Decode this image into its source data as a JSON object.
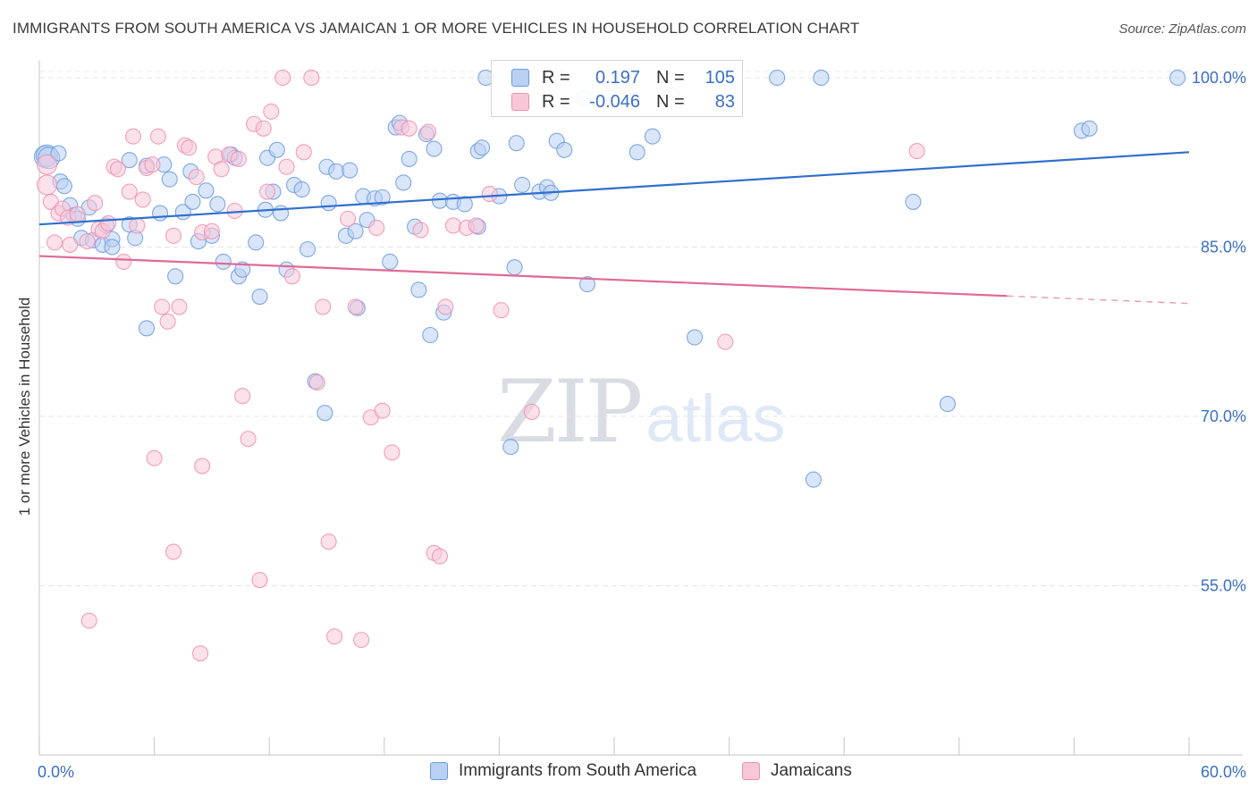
{
  "title": "IMMIGRANTS FROM SOUTH AMERICA VS JAMAICAN 1 OR MORE VEHICLES IN HOUSEHOLD CORRELATION CHART",
  "source": "Source: ZipAtlas.com",
  "watermark": {
    "zip": "ZIP",
    "atlas": "atlas"
  },
  "legend_top": {
    "rows": [
      {
        "r_label": "R =",
        "r_value": "0.197",
        "n_label": "N =",
        "n_value": "105",
        "color": "#6a9be0",
        "fill": "#b9d0f2"
      },
      {
        "r_label": "R =",
        "r_value": "-0.046",
        "n_label": "N =",
        "n_value": "83",
        "color": "#ee8fb0",
        "fill": "#f8c8d8"
      }
    ]
  },
  "legend_bottom": [
    {
      "label": "Immigrants from South America",
      "color": "#6a9be0",
      "fill": "#b9d0f2"
    },
    {
      "label": "Jamaicans",
      "color": "#ee8fb0",
      "fill": "#f8c8d8"
    }
  ],
  "chart_data": {
    "type": "scatter",
    "title": "IMMIGRANTS FROM SOUTH AMERICA VS JAMAICAN 1 OR MORE VEHICLES IN HOUSEHOLD CORRELATION CHART",
    "xlabel": "",
    "ylabel": "1 or more Vehicles in Household",
    "xlim": [
      0,
      60
    ],
    "ylim": [
      40,
      101.5
    ],
    "x_tick_labels": [
      {
        "value": 0,
        "label": "0.0%"
      },
      {
        "value": 60,
        "label": "60.0%"
      }
    ],
    "y_tick_labels": [
      {
        "value": 100,
        "label": "100.0%"
      },
      {
        "value": 85,
        "label": "85.0%"
      },
      {
        "value": 70,
        "label": "70.0%"
      },
      {
        "value": 55,
        "label": "55.0%"
      }
    ],
    "grid": true,
    "legend_position": "top-center",
    "series": [
      {
        "name": "Immigrants from South America",
        "color": "#6a9be0",
        "fill": "#b9d0f2",
        "trend": {
          "x": [
            0,
            60
          ],
          "y": [
            87.0,
            93.4
          ],
          "dashed_from": null
        },
        "points": [
          [
            0.3,
            93.0
          ],
          [
            0.4,
            93.1
          ],
          [
            0.5,
            92.9
          ],
          [
            1.0,
            93.3
          ],
          [
            1.1,
            90.8
          ],
          [
            1.3,
            90.4
          ],
          [
            1.6,
            88.7
          ],
          [
            1.8,
            87.8
          ],
          [
            2.2,
            85.8
          ],
          [
            2.6,
            88.5
          ],
          [
            2.8,
            85.6
          ],
          [
            3.3,
            85.2
          ],
          [
            3.5,
            86.9
          ],
          [
            3.8,
            85.7
          ],
          [
            4.7,
            87.0
          ],
          [
            5.0,
            85.8
          ],
          [
            4.7,
            92.7
          ],
          [
            5.6,
            92.2
          ],
          [
            6.5,
            92.3
          ],
          [
            6.3,
            88.0
          ],
          [
            7.5,
            88.1
          ],
          [
            8.0,
            89.0
          ],
          [
            8.7,
            90.0
          ],
          [
            7.9,
            91.7
          ],
          [
            9.3,
            88.8
          ],
          [
            10.0,
            93.2
          ],
          [
            10.2,
            92.9
          ],
          [
            8.3,
            85.5
          ],
          [
            9.0,
            86.0
          ],
          [
            9.6,
            83.7
          ],
          [
            10.4,
            82.4
          ],
          [
            10.6,
            83.0
          ],
          [
            11.3,
            85.4
          ],
          [
            11.5,
            80.6
          ],
          [
            11.9,
            92.9
          ],
          [
            12.2,
            89.9
          ],
          [
            12.4,
            93.6
          ],
          [
            12.6,
            88.0
          ],
          [
            12.9,
            83.0
          ],
          [
            13.3,
            90.5
          ],
          [
            13.7,
            90.1
          ],
          [
            14.0,
            84.8
          ],
          [
            14.4,
            73.1
          ],
          [
            14.9,
            70.3
          ],
          [
            15.0,
            92.1
          ],
          [
            15.5,
            91.7
          ],
          [
            15.1,
            88.9
          ],
          [
            16.0,
            86.0
          ],
          [
            16.2,
            91.8
          ],
          [
            16.5,
            86.4
          ],
          [
            16.6,
            79.6
          ],
          [
            16.9,
            89.5
          ],
          [
            17.5,
            89.3
          ],
          [
            17.9,
            89.4
          ],
          [
            18.3,
            83.7
          ],
          [
            18.6,
            95.6
          ],
          [
            18.8,
            96.0
          ],
          [
            19.0,
            90.7
          ],
          [
            19.3,
            92.8
          ],
          [
            19.6,
            86.8
          ],
          [
            19.8,
            81.2
          ],
          [
            20.2,
            95.0
          ],
          [
            20.4,
            77.2
          ],
          [
            20.6,
            93.7
          ],
          [
            20.9,
            89.1
          ],
          [
            21.1,
            79.2
          ],
          [
            21.6,
            89.0
          ],
          [
            22.2,
            88.8
          ],
          [
            22.9,
            93.5
          ],
          [
            23.1,
            93.8
          ],
          [
            23.3,
            100.0
          ],
          [
            22.9,
            86.8
          ],
          [
            24.0,
            89.5
          ],
          [
            24.6,
            67.3
          ],
          [
            24.8,
            83.2
          ],
          [
            24.9,
            94.2
          ],
          [
            25.2,
            90.5
          ],
          [
            26.1,
            89.9
          ],
          [
            26.5,
            90.3
          ],
          [
            26.7,
            89.8
          ],
          [
            27.0,
            94.4
          ],
          [
            27.4,
            93.6
          ],
          [
            28.6,
            81.7
          ],
          [
            28.4,
            98.2
          ],
          [
            29.8,
            99.6
          ],
          [
            31.2,
            93.4
          ],
          [
            32.0,
            94.8
          ],
          [
            33.0,
            98.5
          ],
          [
            34.2,
            77.0
          ],
          [
            35.6,
            100.0
          ],
          [
            38.5,
            100.0
          ],
          [
            40.4,
            64.4
          ],
          [
            40.8,
            100.0
          ],
          [
            45.6,
            89.0
          ],
          [
            47.4,
            71.1
          ],
          [
            54.4,
            95.3
          ],
          [
            54.8,
            95.5
          ],
          [
            59.4,
            100.0
          ],
          [
            7.1,
            82.4
          ],
          [
            5.6,
            77.8
          ],
          [
            3.8,
            85.0
          ],
          [
            2.0,
            87.5
          ],
          [
            6.8,
            91.0
          ],
          [
            11.8,
            88.3
          ],
          [
            17.1,
            87.4
          ]
        ]
      },
      {
        "name": "Jamaicans",
        "color": "#ee8fb0",
        "fill": "#f8c8d8",
        "trend": {
          "x": [
            0,
            60
          ],
          "y": [
            84.2,
            80.0
          ],
          "dashed_from": 50.5
        },
        "points": [
          [
            0.4,
            92.3
          ],
          [
            0.4,
            90.5
          ],
          [
            0.6,
            89.0
          ],
          [
            0.8,
            85.4
          ],
          [
            1.0,
            88.0
          ],
          [
            1.2,
            88.4
          ],
          [
            1.5,
            87.6
          ],
          [
            1.6,
            85.2
          ],
          [
            2.0,
            87.9
          ],
          [
            2.5,
            85.5
          ],
          [
            2.9,
            88.9
          ],
          [
            3.1,
            86.6
          ],
          [
            3.3,
            86.4
          ],
          [
            3.6,
            87.1
          ],
          [
            3.9,
            92.1
          ],
          [
            4.1,
            91.9
          ],
          [
            4.4,
            83.7
          ],
          [
            4.7,
            89.9
          ],
          [
            4.9,
            94.8
          ],
          [
            5.1,
            86.9
          ],
          [
            5.4,
            89.2
          ],
          [
            5.6,
            92.0
          ],
          [
            5.9,
            92.3
          ],
          [
            6.2,
            94.8
          ],
          [
            6.4,
            79.7
          ],
          [
            6.7,
            78.4
          ],
          [
            7.0,
            86.0
          ],
          [
            7.3,
            79.7
          ],
          [
            7.6,
            94.0
          ],
          [
            7.8,
            93.8
          ],
          [
            8.2,
            91.2
          ],
          [
            8.5,
            86.3
          ],
          [
            9.0,
            86.4
          ],
          [
            9.2,
            93.0
          ],
          [
            9.5,
            91.9
          ],
          [
            9.9,
            93.2
          ],
          [
            10.2,
            88.2
          ],
          [
            10.4,
            92.8
          ],
          [
            10.6,
            71.8
          ],
          [
            10.9,
            68.0
          ],
          [
            11.2,
            95.9
          ],
          [
            11.7,
            95.5
          ],
          [
            11.9,
            89.9
          ],
          [
            12.1,
            97.0
          ],
          [
            12.7,
            100.0
          ],
          [
            12.9,
            92.1
          ],
          [
            13.2,
            82.4
          ],
          [
            13.8,
            93.4
          ],
          [
            14.2,
            100.0
          ],
          [
            14.5,
            73.0
          ],
          [
            14.8,
            79.7
          ],
          [
            15.1,
            58.9
          ],
          [
            15.4,
            50.5
          ],
          [
            16.1,
            87.5
          ],
          [
            16.5,
            79.7
          ],
          [
            16.8,
            50.2
          ],
          [
            17.3,
            69.9
          ],
          [
            17.6,
            86.7
          ],
          [
            17.9,
            70.5
          ],
          [
            18.4,
            66.8
          ],
          [
            18.9,
            95.6
          ],
          [
            19.3,
            95.5
          ],
          [
            19.9,
            86.5
          ],
          [
            20.3,
            95.2
          ],
          [
            20.6,
            57.9
          ],
          [
            20.9,
            57.6
          ],
          [
            21.2,
            79.7
          ],
          [
            21.6,
            86.9
          ],
          [
            22.3,
            86.7
          ],
          [
            22.8,
            86.9
          ],
          [
            23.5,
            89.7
          ],
          [
            24.1,
            79.4
          ],
          [
            25.7,
            70.4
          ],
          [
            27.2,
            100.0
          ],
          [
            29.6,
            100.0
          ],
          [
            35.8,
            76.6
          ],
          [
            45.8,
            93.5
          ],
          [
            2.6,
            51.9
          ],
          [
            6.0,
            66.3
          ],
          [
            7.0,
            58.0
          ],
          [
            8.5,
            65.6
          ],
          [
            11.5,
            55.5
          ],
          [
            8.4,
            49.0
          ]
        ]
      }
    ]
  }
}
